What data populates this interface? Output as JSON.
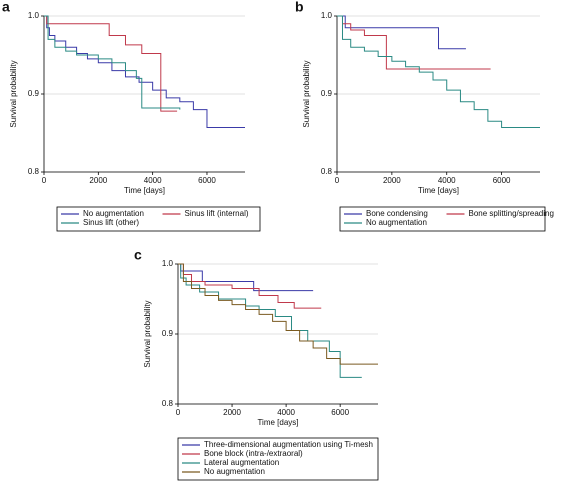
{
  "chart_data": [
    {
      "type": "step",
      "label": "a",
      "ylabel": "Survival probability",
      "xlabel": "Time [days]",
      "xlim": [
        0,
        7400
      ],
      "xticks": [
        0,
        2000,
        4000,
        6000
      ],
      "ylim": [
        0.8,
        1
      ],
      "yticks": [
        0.8,
        0.9,
        {
          "value": 1,
          "label": "1.0"
        }
      ],
      "grid": true,
      "series": [
        {
          "name": "No augmentation",
          "color": "#3a3aa8",
          "x": [
            0,
            100,
            200,
            400,
            800,
            1200,
            1600,
            2000,
            2500,
            3000,
            3500,
            4000,
            4500,
            5000,
            5500,
            6000,
            7400
          ],
          "values": [
            1,
            0.985,
            0.975,
            0.968,
            0.96,
            0.952,
            0.945,
            0.94,
            0.93,
            0.922,
            0.915,
            0.905,
            0.895,
            0.89,
            0.88,
            0.857,
            0.857
          ]
        },
        {
          "name": "Sinus lift (internal)",
          "color": "#c0394b",
          "x": [
            0,
            100,
            1800,
            2400,
            3000,
            3600,
            4300,
            4900
          ],
          "values": [
            1,
            0.99,
            0.99,
            0.975,
            0.963,
            0.952,
            0.878,
            0.878
          ]
        },
        {
          "name": "Sinus lift (other)",
          "color": "#2a8a84",
          "x": [
            0,
            150,
            400,
            800,
            1200,
            2000,
            2500,
            3000,
            3400,
            3600,
            4200,
            5000
          ],
          "values": [
            1,
            0.97,
            0.96,
            0.955,
            0.95,
            0.945,
            0.94,
            0.93,
            0.92,
            0.882,
            0.882,
            0.88
          ]
        }
      ]
    },
    {
      "type": "step",
      "label": "b",
      "ylabel": "Survival probability",
      "xlabel": "Time [days]",
      "xlim": [
        0,
        7400
      ],
      "xticks": [
        0,
        2000,
        4000,
        6000
      ],
      "ylim": [
        0.8,
        1
      ],
      "yticks": [
        0.8,
        0.9,
        {
          "value": 1,
          "label": "1.0"
        }
      ],
      "grid": true,
      "series": [
        {
          "name": "Bone condensing",
          "color": "#3a3aa8",
          "x": [
            0,
            300,
            3700,
            4700
          ],
          "values": [
            1,
            0.985,
            0.958,
            0.958
          ]
        },
        {
          "name": "Bone splitting/spreading",
          "color": "#c0394b",
          "x": [
            0,
            200,
            500,
            1000,
            1800,
            5600
          ],
          "values": [
            1,
            0.99,
            0.982,
            0.975,
            0.932,
            0.932
          ]
        },
        {
          "name": "No augmentation",
          "color": "#2a8a84",
          "x": [
            0,
            200,
            500,
            1000,
            1500,
            2000,
            2500,
            3000,
            3500,
            4000,
            4500,
            5000,
            5500,
            6000,
            7400
          ],
          "values": [
            1,
            0.97,
            0.96,
            0.955,
            0.948,
            0.942,
            0.935,
            0.928,
            0.918,
            0.905,
            0.89,
            0.88,
            0.865,
            0.857,
            0.857
          ]
        }
      ]
    },
    {
      "type": "step",
      "label": "c",
      "ylabel": "Survival probability",
      "xlabel": "Time [days]",
      "xlim": [
        0,
        7400
      ],
      "xticks": [
        0,
        2000,
        4000,
        6000
      ],
      "ylim": [
        0.8,
        1
      ],
      "yticks": [
        0.8,
        0.9,
        {
          "value": 1,
          "label": "1.0"
        }
      ],
      "grid": true,
      "series": [
        {
          "name": "Three-dimensional augmentation using Ti-mesh",
          "color": "#3a3aa8",
          "x": [
            0,
            100,
            900,
            2800,
            5000
          ],
          "values": [
            1,
            0.99,
            0.975,
            0.962,
            0.962
          ]
        },
        {
          "name": "Bone block (intra-/extraoral)",
          "color": "#c0394b",
          "x": [
            0,
            200,
            500,
            1000,
            2000,
            3000,
            3700,
            4300,
            5300
          ],
          "values": [
            1,
            0.985,
            0.975,
            0.97,
            0.965,
            0.955,
            0.945,
            0.937,
            0.937
          ]
        },
        {
          "name": "Lateral augmentation",
          "color": "#2a8a84",
          "x": [
            0,
            100,
            300,
            800,
            1500,
            2500,
            3000,
            3600,
            4200,
            4800,
            5600,
            6000,
            6800
          ],
          "values": [
            1,
            0.98,
            0.97,
            0.96,
            0.95,
            0.94,
            0.935,
            0.925,
            0.905,
            0.89,
            0.875,
            0.838,
            0.838
          ]
        },
        {
          "name": "No augmentation",
          "color": "#7a5a20",
          "x": [
            0,
            200,
            500,
            1000,
            1500,
            2000,
            2500,
            3000,
            3500,
            4000,
            4500,
            5000,
            5500,
            6000,
            7400
          ],
          "values": [
            1,
            0.975,
            0.965,
            0.955,
            0.948,
            0.942,
            0.935,
            0.928,
            0.918,
            0.905,
            0.89,
            0.88,
            0.865,
            0.857,
            0.857
          ]
        }
      ]
    }
  ]
}
